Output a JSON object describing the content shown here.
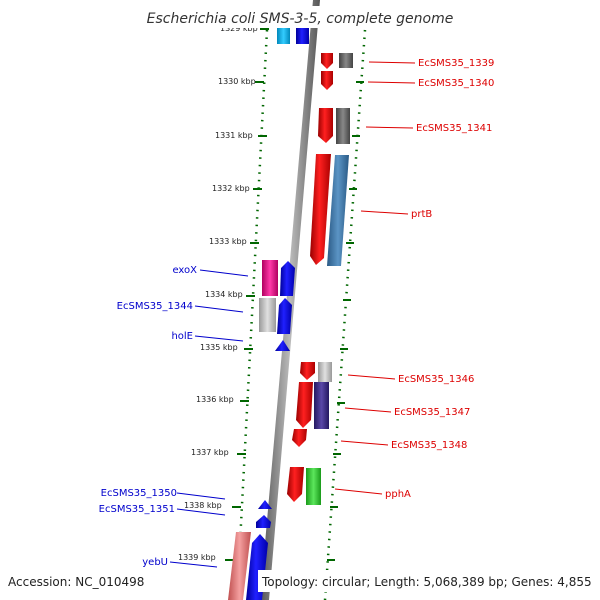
{
  "title": "Escherichia coli SMS-3-5, complete genome",
  "footer": {
    "accession": "Accession: NC_010498",
    "summary": "Topology: circular; Length: 5,068,389 bp; Genes: 4,855"
  },
  "kbp_labels": [
    "1329 kbp",
    "1330 kbp",
    "1331 kbp",
    "1332 kbp",
    "1333 kbp",
    "1334 kbp",
    "1335 kbp",
    "1336 kbp",
    "1337 kbp",
    "1338 kbp",
    "1339 kbp"
  ],
  "genes_right": [
    "EcSMS35_1339",
    "EcSMS35_1340",
    "EcSMS35_1341",
    "prtB",
    "EcSMS35_1346",
    "EcSMS35_1347",
    "EcSMS35_1348",
    "pphA"
  ],
  "genes_left": [
    "exoX",
    "EcSMS35_1344",
    "holE",
    "EcSMS35_1350",
    "EcSMS35_1351",
    "yebU"
  ],
  "colors": {
    "forward": "#ff0000",
    "reverse": "#0000ff",
    "label_right": "#dd0000",
    "label_left": "#0000cc",
    "ruler": "#006600",
    "axis": "#888888"
  }
}
